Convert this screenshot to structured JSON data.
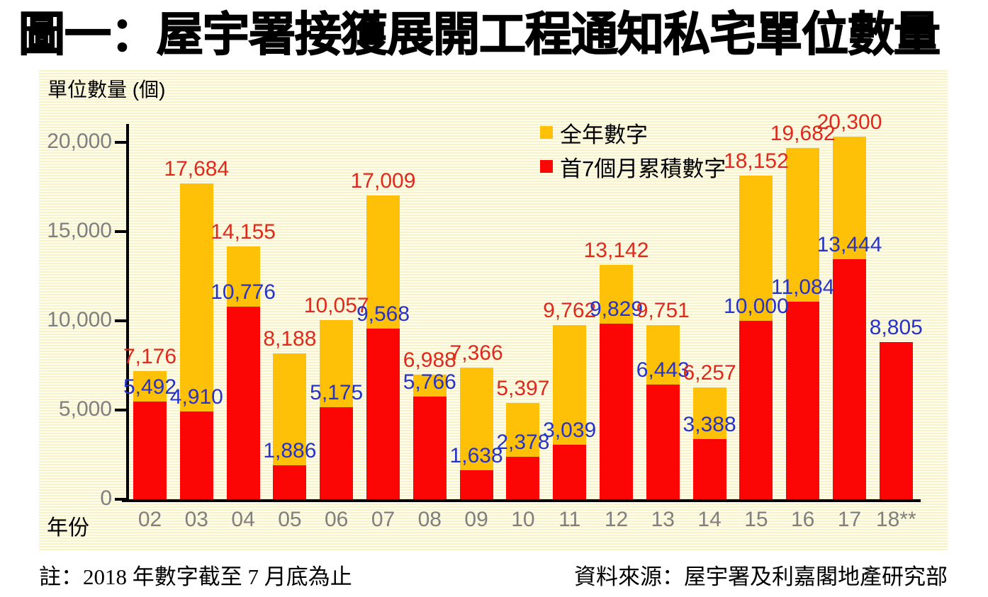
{
  "title": "圖一：屋宇署接獲展開工程通知私宅單位數量",
  "chart_data": {
    "type": "bar",
    "stacked": true,
    "title": "圖一：屋宇署接獲展開工程通知私宅單位數量",
    "ylabel": "單位數量 (個)",
    "xlabel": "年份",
    "ylim": [
      0,
      21200
    ],
    "yticks": [
      0,
      5000,
      10000,
      15000,
      20000
    ],
    "ytick_labels": [
      "0",
      "5,000",
      "10,000",
      "15,000",
      "20,000"
    ],
    "grid": false,
    "legend_position": "top-right",
    "categories": [
      "02",
      "03",
      "04",
      "05",
      "06",
      "07",
      "08",
      "09",
      "10",
      "11",
      "12",
      "13",
      "14",
      "15",
      "16",
      "17",
      "18**"
    ],
    "series": [
      {
        "name": "全年數字",
        "color": "#ffc107",
        "values": [
          7176,
          17684,
          14155,
          8188,
          10057,
          17009,
          6988,
          7366,
          5397,
          9762,
          13142,
          9751,
          6257,
          18152,
          19682,
          20300,
          null
        ]
      },
      {
        "name": "首7個月累積數字",
        "color": "#fb0505",
        "values": [
          5492,
          4910,
          10776,
          1886,
          5175,
          9568,
          5766,
          1638,
          2378,
          3039,
          9829,
          6443,
          3388,
          10000,
          11084,
          13444,
          8805
        ]
      }
    ],
    "label_colors": {
      "full_year": "#dd2a1d",
      "seven_month": "#2633c9"
    },
    "colors": {
      "axis": "#000000",
      "tick_text": "#7f7f7f",
      "panel_base": "#f8f2c6",
      "panel_stripe": "#fffef2",
      "title_text": "#000000"
    }
  },
  "footer": {
    "note": "註：2018 年數字截至 7 月底為止",
    "source": "資料來源：屋宇署及利嘉閣地產研究部"
  }
}
